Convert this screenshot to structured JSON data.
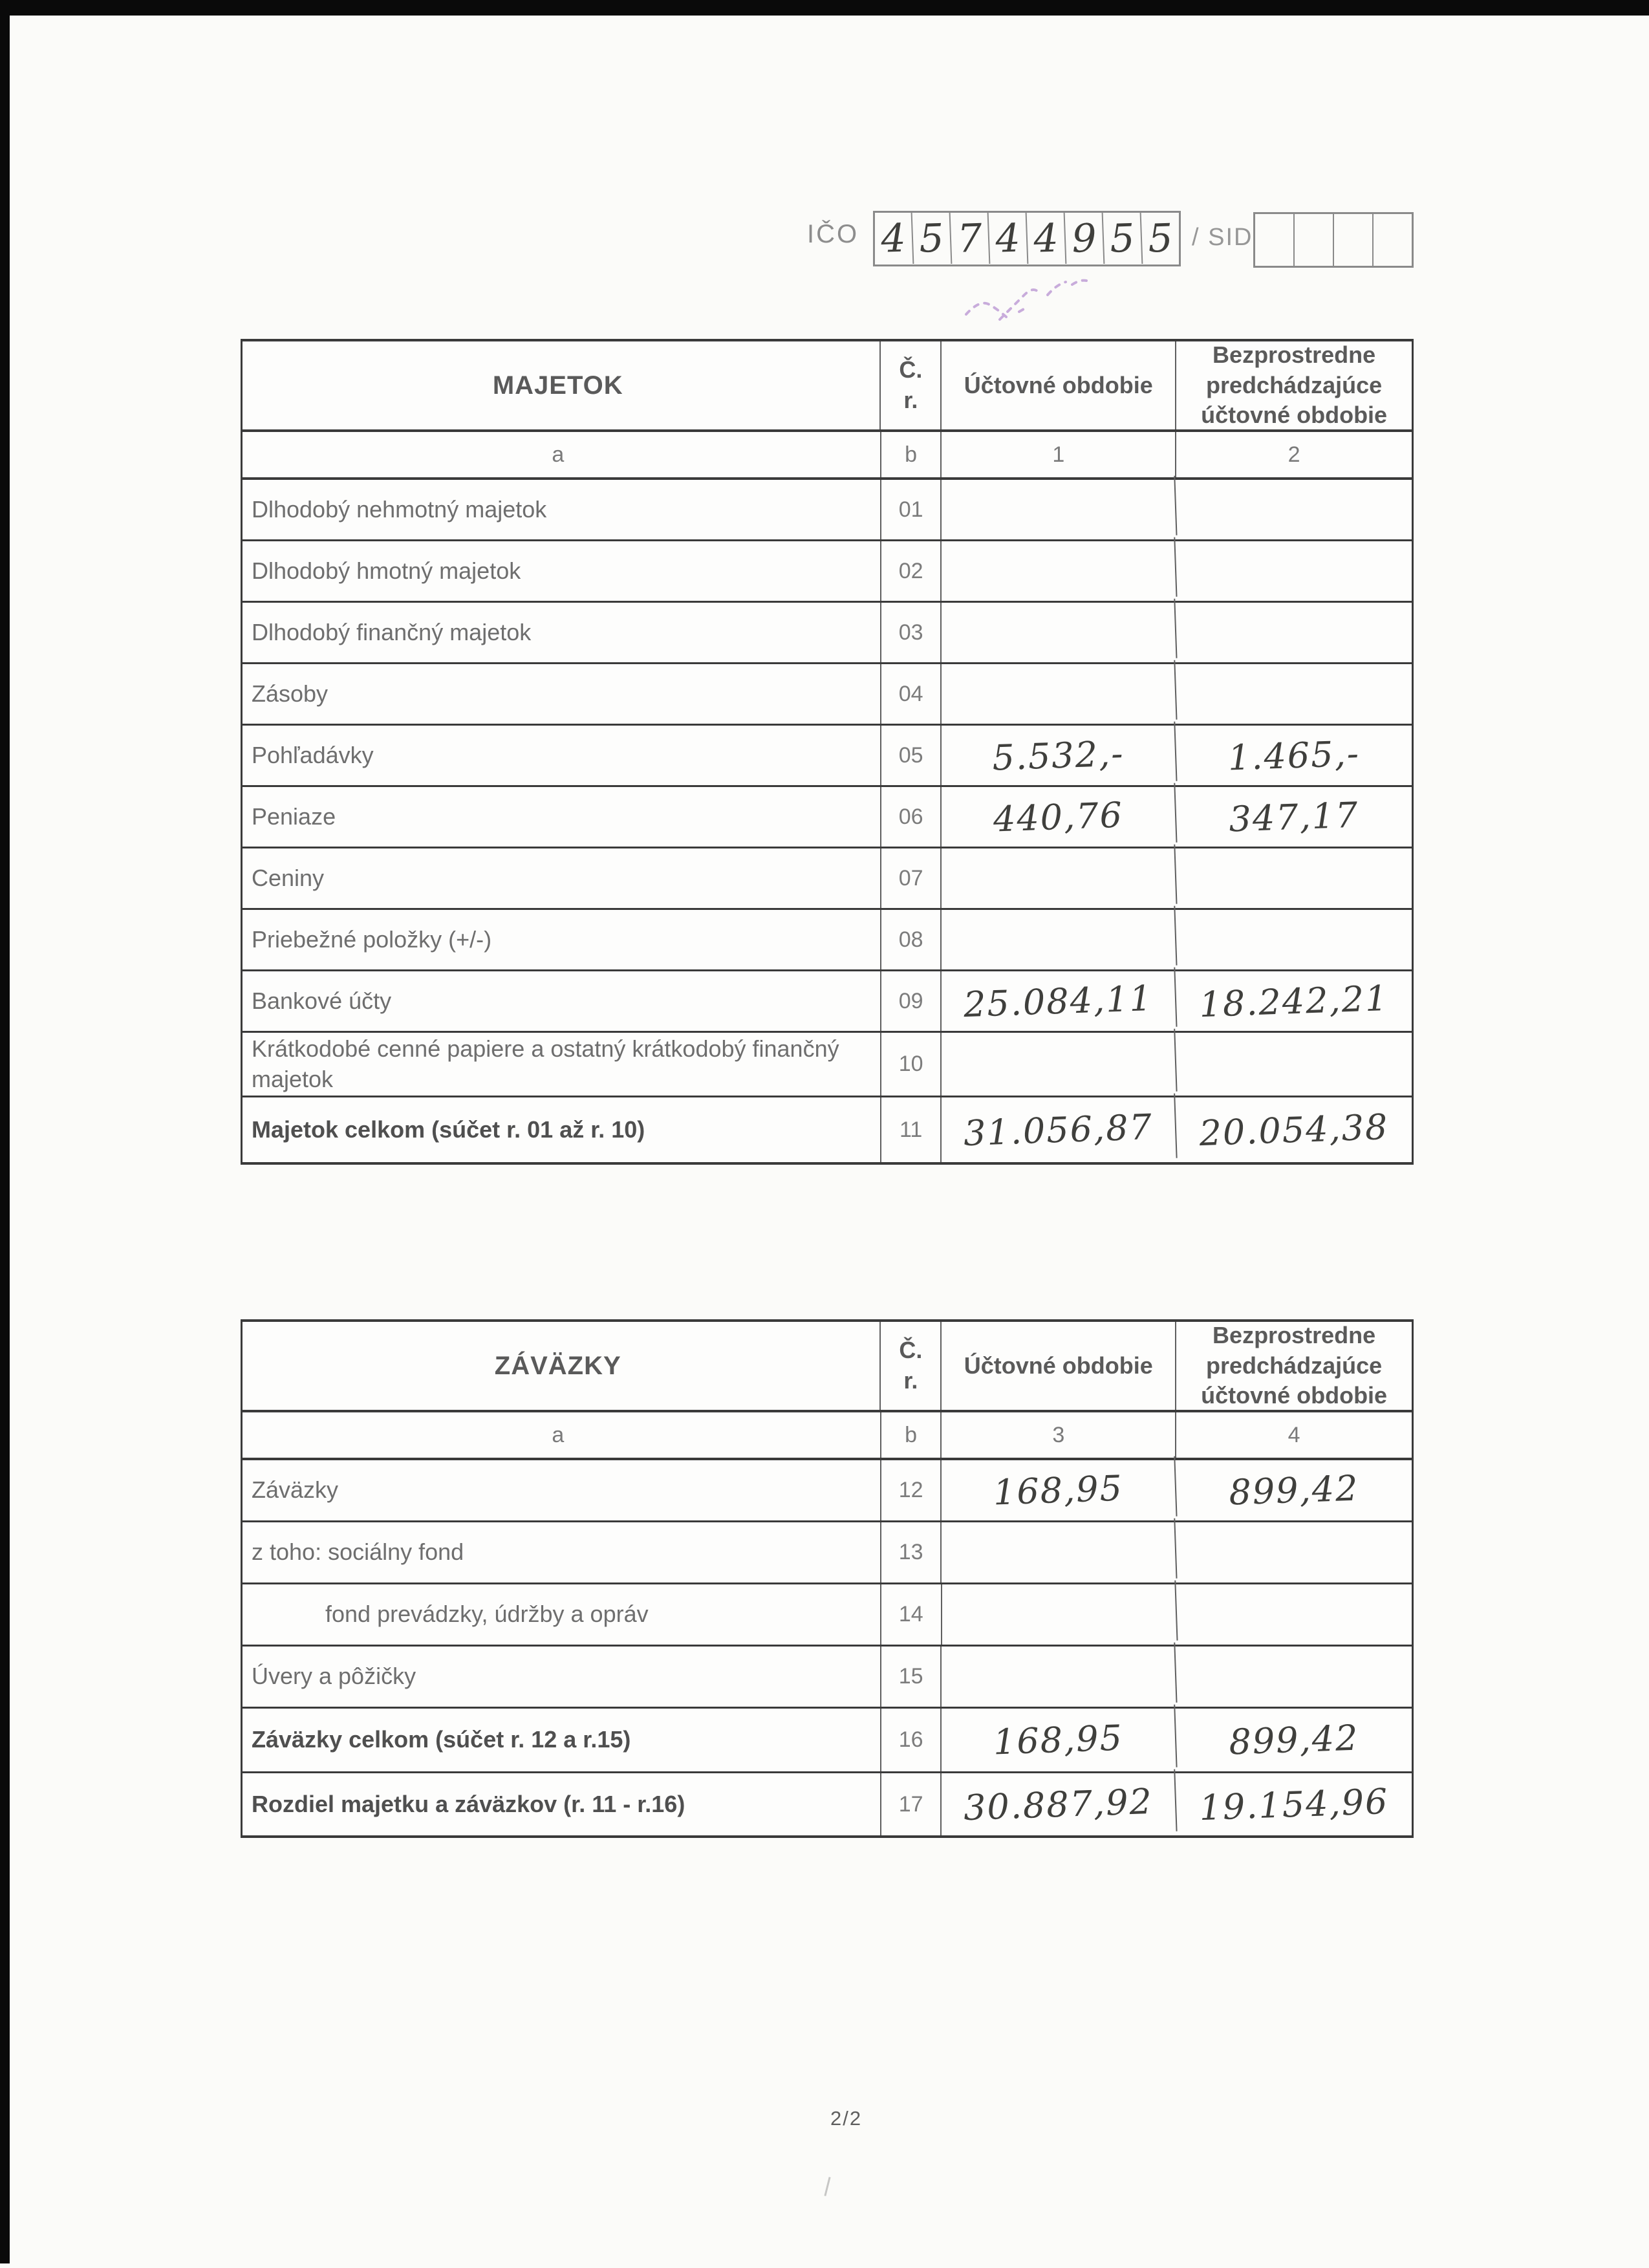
{
  "scan": {
    "ico": {
      "label": "IČO",
      "digits": [
        "4",
        "5",
        "7",
        "4",
        "4",
        "9",
        "5",
        "5"
      ]
    },
    "sid": {
      "label": "/ SID",
      "cells": [
        "",
        "",
        "",
        ""
      ]
    },
    "footer": {
      "page_number": "2/2"
    }
  },
  "table1": {
    "title": "MAJETOK",
    "headers": {
      "cr": "Č. r.",
      "current": "Účtovné obdobie",
      "previous": "Bezprostredne predchádzajúce účtovné obdobie"
    },
    "subheaders": [
      "a",
      "b",
      "1",
      "2"
    ],
    "rows": [
      {
        "label": "Dlhodobý nehmotný majetok",
        "cr": "01",
        "v1": "",
        "v2": ""
      },
      {
        "label": "Dlhodobý hmotný majetok",
        "cr": "02",
        "v1": "",
        "v2": ""
      },
      {
        "label": "Dlhodobý finančný majetok",
        "cr": "03",
        "v1": "",
        "v2": ""
      },
      {
        "label": "Zásoby",
        "cr": "04",
        "v1": "",
        "v2": ""
      },
      {
        "label": "Pohľadávky",
        "cr": "05",
        "v1": "5.532,-",
        "v2": "1.465,-"
      },
      {
        "label": "Peniaze",
        "cr": "06",
        "v1": "440,76",
        "v2": "347,17"
      },
      {
        "label": "Ceniny",
        "cr": "07",
        "v1": "",
        "v2": ""
      },
      {
        "label": "Priebežné položky (+/-)",
        "cr": "08",
        "v1": "",
        "v2": ""
      },
      {
        "label": "Bankové účty",
        "cr": "09",
        "v1": "25.084,11",
        "v2": "18.242,21"
      },
      {
        "label": "Krátkodobé cenné papiere a ostatný krátkodobý finančný majetok",
        "cr": "10",
        "v1": "",
        "v2": ""
      },
      {
        "label": "Majetok celkom (súčet r. 01 až r. 10)",
        "cr": "11",
        "v1": "31.056,87",
        "v2": "20.054,38",
        "bold": true
      }
    ]
  },
  "table2": {
    "title": "ZÁVÄZKY",
    "headers": {
      "cr": "Č. r.",
      "current": "Účtovné obdobie",
      "previous": "Bezprostredne predchádzajúce účtovné obdobie"
    },
    "subheaders": [
      "a",
      "b",
      "3",
      "4"
    ],
    "rows": [
      {
        "label": "Záväzky",
        "cr": "12",
        "v1": "168,95",
        "v2": "899,42"
      },
      {
        "label": "z toho: sociálny fond",
        "cr": "13",
        "v1": "",
        "v2": ""
      },
      {
        "label": "fond prevádzky, údržby a opráv",
        "cr": "14",
        "v1": "",
        "v2": "",
        "indent": true
      },
      {
        "label": "Úvery a pôžičky",
        "cr": "15",
        "v1": "",
        "v2": ""
      },
      {
        "label": "Záväzky celkom (súčet r. 12 a r.15)",
        "cr": "16",
        "v1": "168,95",
        "v2": "899,42",
        "bold": true
      },
      {
        "label": "Rozdiel majetku a záväzkov (r. 11 - r.16)",
        "cr": "17",
        "v1": "30.887,92",
        "v2": "19.154,96",
        "bold": true
      }
    ]
  }
}
